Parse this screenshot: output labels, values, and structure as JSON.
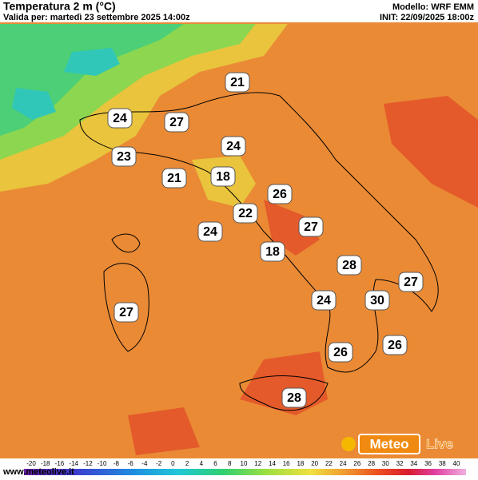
{
  "header": {
    "title": "Temperatura 2 m (°C)",
    "valid": "Valida per: martedì 23 settembre 2025 14:00z",
    "model": "Modello: WRF EMM",
    "init": "INIT: 22/09/2025 18:00z"
  },
  "labels": [
    "21",
    "24",
    "27",
    "24",
    "23",
    "21",
    "18",
    "26",
    "22",
    "24",
    "27",
    "18",
    "28",
    "27",
    "24",
    "30",
    "27",
    "26",
    "26",
    "28"
  ],
  "colorbar": [
    "-20",
    "-18",
    "-16",
    "-14",
    "-12",
    "-10",
    "-8",
    "-6",
    "-4",
    "-2",
    "0",
    "2",
    "4",
    "6",
    "8",
    "10",
    "12",
    "14",
    "16",
    "18",
    "20",
    "22",
    "24",
    "26",
    "28",
    "30",
    "32",
    "34",
    "36",
    "38",
    "40"
  ],
  "footer": "www.meteolive.it",
  "logo": {
    "part1": "Meteo",
    "part2": "Live"
  }
}
